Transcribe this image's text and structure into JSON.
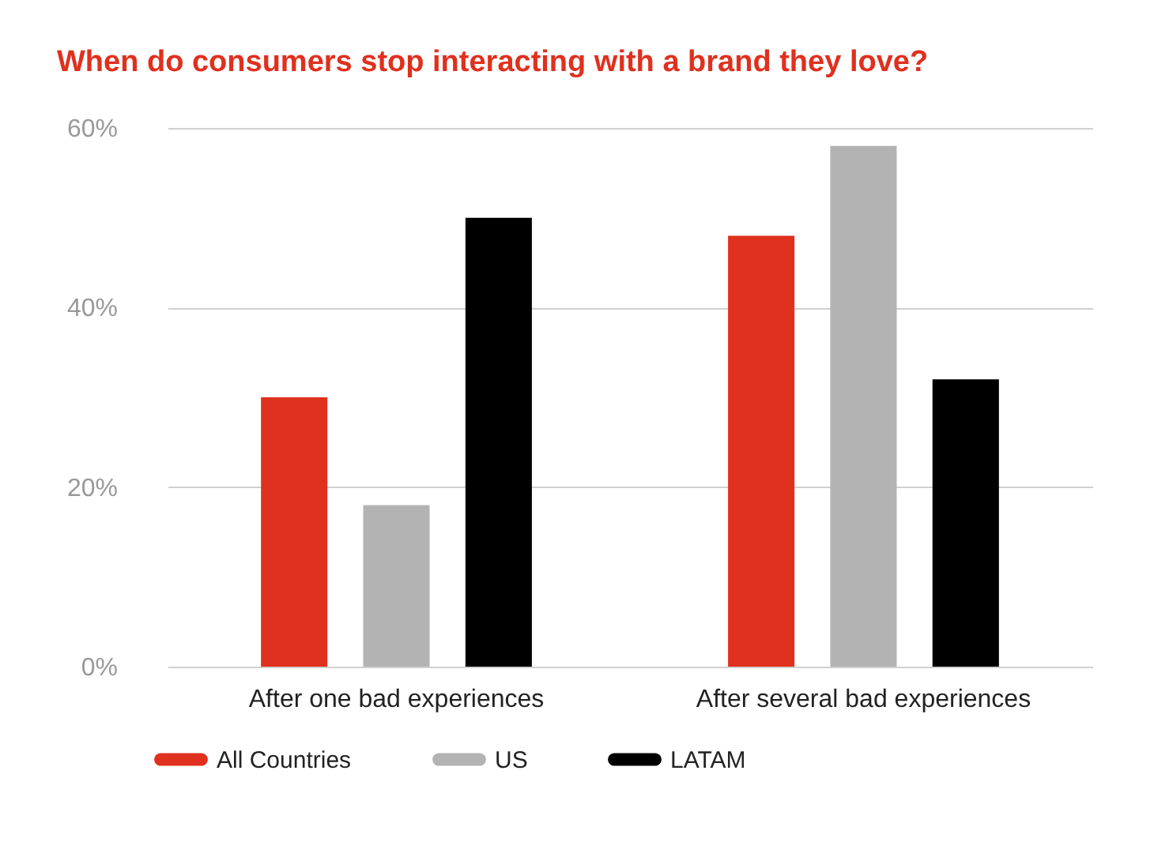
{
  "chart_data": {
    "type": "bar",
    "title": "When do consumers stop interacting with a brand they love?",
    "categories": [
      "After one bad experiences",
      "After several bad experiences"
    ],
    "series": [
      {
        "name": "All Countries",
        "color": "#e0301e",
        "values": [
          30,
          48
        ]
      },
      {
        "name": "US",
        "color": "#b3b3b3",
        "values": [
          18,
          58
        ]
      },
      {
        "name": "LATAM",
        "color": "#000000",
        "values": [
          50,
          32
        ]
      }
    ],
    "ylim": [
      0,
      60
    ],
    "yticks": [
      {
        "value": 0,
        "label": "0%"
      },
      {
        "value": 20,
        "label": "20%"
      },
      {
        "value": 40,
        "label": "40%"
      },
      {
        "value": 60,
        "label": "60%"
      }
    ],
    "grid": "y",
    "legend": "bottom"
  }
}
